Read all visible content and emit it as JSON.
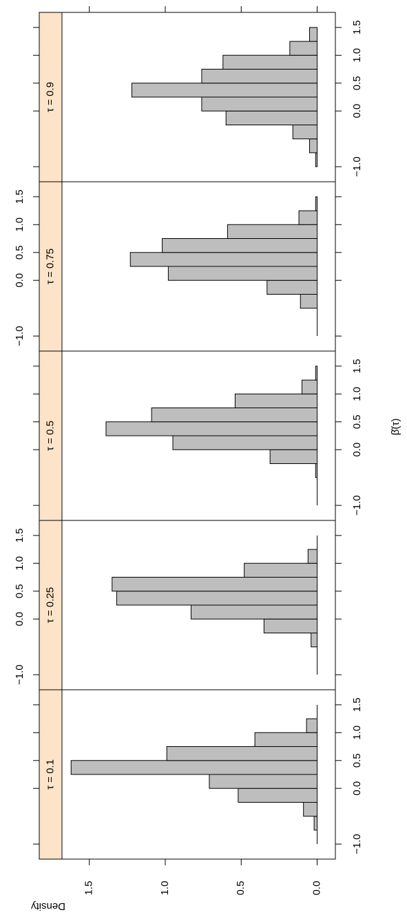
{
  "chart_data": {
    "type": "histogram",
    "ylabel": "Density",
    "xlabel": "β̂(τ)",
    "bins": [
      -1.0,
      -0.75,
      -0.5,
      -0.25,
      0.0,
      0.25,
      0.5,
      0.75,
      1.0,
      1.25,
      1.5
    ],
    "panels": [
      {
        "title": "τ = 0.1",
        "values": [
          0,
          0.02,
          0.09,
          0.52,
          0.71,
          1.62,
          0.99,
          0.41,
          0.07,
          0
        ]
      },
      {
        "title": "τ = 0.25",
        "values": [
          0,
          0,
          0.04,
          0.35,
          0.83,
          1.32,
          1.35,
          0.48,
          0.06,
          0
        ]
      },
      {
        "title": "τ = 0.5",
        "values": [
          0,
          0,
          0.01,
          0.31,
          0.95,
          1.39,
          1.09,
          0.54,
          0.1,
          0.01
        ]
      },
      {
        "title": "τ = 0.75",
        "values": [
          0,
          0,
          0.11,
          0.33,
          0.98,
          1.23,
          1.02,
          0.59,
          0.12,
          0.01
        ]
      },
      {
        "title": "τ = 0.9",
        "values": [
          0.01,
          0.05,
          0.16,
          0.6,
          0.76,
          1.22,
          0.76,
          0.62,
          0.18,
          0.05
        ]
      }
    ],
    "color": "#bebebe",
    "strip_color": "#fde3c8",
    "xlim": [
      -1.27,
      1.77
    ],
    "xticks": [
      {
        "value": -1.0,
        "label": "−1.0"
      },
      {
        "value": 0.0,
        "label": "0.0"
      },
      {
        "value": 0.5,
        "label": "0.5"
      },
      {
        "value": 1.0,
        "label": "1.0"
      },
      {
        "value": 1.5,
        "label": "1.5"
      }
    ],
    "ylim": [
      -0.12,
      1.68
    ],
    "yticks": [
      {
        "value": 0.0,
        "label": "0.0"
      },
      {
        "value": 0.5,
        "label": "0.5"
      },
      {
        "value": 1.0,
        "label": "1.0"
      },
      {
        "value": 1.5,
        "label": "1.5"
      }
    ]
  }
}
